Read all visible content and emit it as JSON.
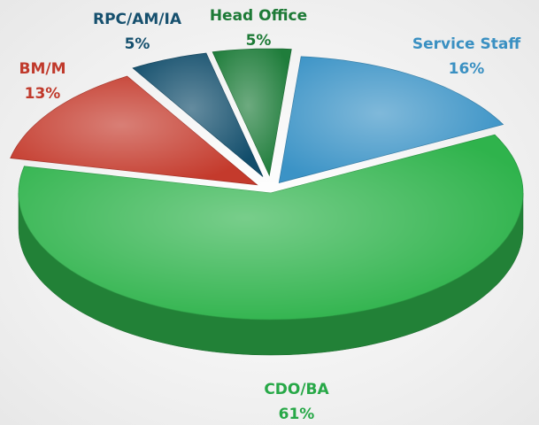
{
  "chart_data": {
    "type": "pie",
    "categories": [
      "Service Staff",
      "CDO/BA",
      "BM/M",
      "RPC/AM/IA",
      "Head Office"
    ],
    "values": [
      16,
      61,
      13,
      5,
      5
    ],
    "value_labels": [
      "16%",
      "61%",
      "13%",
      "5%",
      "5%"
    ],
    "colors": [
      "#3b93c6",
      "#2fb34c",
      "#c43a2c",
      "#114d6b",
      "#1f7d3b"
    ],
    "label_colors": [
      "#3a90c2",
      "#27a847",
      "#c0392b",
      "#16506e",
      "#1d7a36"
    ]
  }
}
